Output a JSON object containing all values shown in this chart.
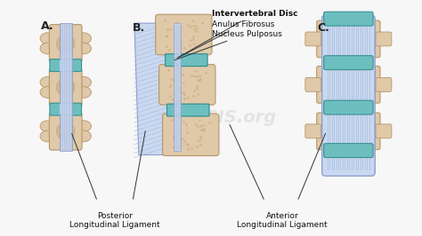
{
  "bg_color": "#f7f7f7",
  "bone_color": "#dfc9a8",
  "bone_edge": "#b8956a",
  "bone_inner": "#c9a87a",
  "disc_color": "#6dbfbf",
  "disc_edge": "#3a9090",
  "lig_color": "#c8d8f0",
  "lig_edge": "#8899cc",
  "lig_stripe": "#a0b4d8",
  "watermark_color": "#cccccc",
  "watermark": "OSMOSIS.org",
  "label_A": "A.",
  "label_B": "B.",
  "label_C": "C.",
  "lbl_intervertebral": "Intervertebral Disc",
  "lbl_anulus": "Anulus Fibrosus",
  "lbl_nucleus": "Nucleus Pulposus",
  "lbl_posterior": "Posterior\nLongitudinal Ligament",
  "lbl_anterior": "Anterior\nLongitudinal Ligament",
  "fs_label": 6.5,
  "fs_letter": 9,
  "fs_bold": 6.5
}
